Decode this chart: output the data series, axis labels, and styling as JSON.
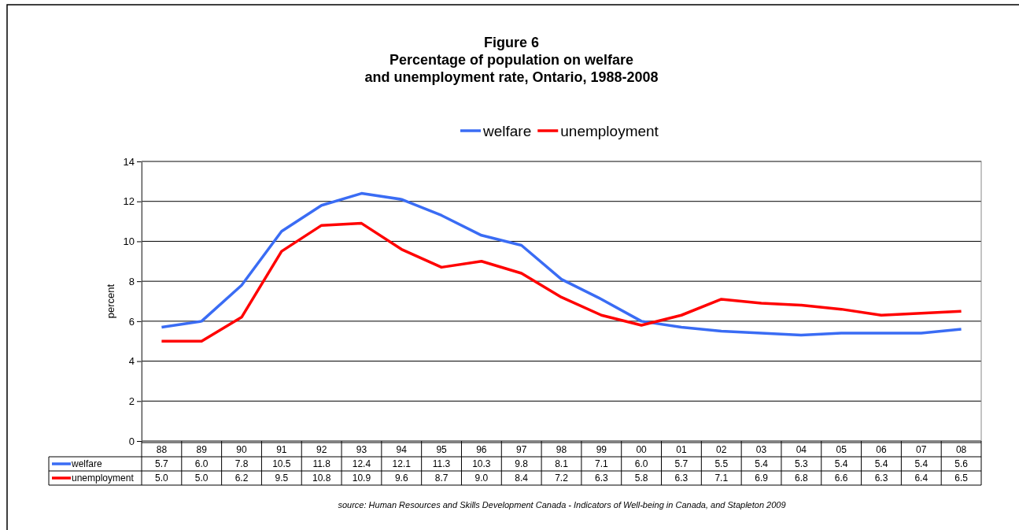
{
  "chart_data": {
    "type": "line",
    "title": "Figure 6",
    "subtitle": "Percentage of population on welfare\nand unemployment rate, Ontario, 1988-2008",
    "ylabel": "percent",
    "categories": [
      "88",
      "89",
      "90",
      "91",
      "92",
      "93",
      "94",
      "95",
      "96",
      "97",
      "98",
      "99",
      "00",
      "01",
      "02",
      "03",
      "04",
      "05",
      "06",
      "07",
      "08"
    ],
    "series": [
      {
        "name": "welfare",
        "color": "#3a6cf4",
        "values": [
          5.7,
          6.0,
          7.8,
          10.5,
          11.8,
          12.4,
          12.1,
          11.3,
          10.3,
          9.8,
          8.1,
          7.1,
          6.0,
          5.7,
          5.5,
          5.4,
          5.3,
          5.4,
          5.4,
          5.4,
          5.6
        ],
        "value_labels": [
          "5.7",
          "6.0",
          "7.8",
          "10.5",
          "11.8",
          "12.4",
          "12.1",
          "11.3",
          "10.3",
          "9.8",
          "8.1",
          "7.1",
          "6.0",
          "5.7",
          "5.5",
          "5.4",
          "5.3",
          "5.4",
          "5.4",
          "5.4",
          "5.6"
        ]
      },
      {
        "name": "unemployment",
        "color": "#ff0000",
        "values": [
          5.0,
          5.0,
          6.2,
          9.5,
          10.8,
          10.9,
          9.6,
          8.7,
          9.0,
          8.4,
          7.2,
          6.3,
          5.8,
          6.3,
          7.1,
          6.9,
          6.8,
          6.6,
          6.3,
          6.4,
          6.5
        ],
        "value_labels": [
          "5.0",
          "5.0",
          "6.2",
          "9.5",
          "10.8",
          "10.9",
          "9.6",
          "8.7",
          "9.0",
          "8.4",
          "7.2",
          "6.3",
          "5.8",
          "6.3",
          "7.1",
          "6.9",
          "6.8",
          "6.6",
          "6.3",
          "6.4",
          "6.5"
        ]
      }
    ],
    "ylim": [
      0,
      14
    ],
    "yticks": [
      0,
      2,
      4,
      6,
      8,
      10,
      12,
      14
    ],
    "grid": "y",
    "legend": "top",
    "marker": "none",
    "line_style": "solid",
    "annotations": [
      "source: Human Resources and Skills Development Canada - Indicators of Well-being in Canada, and Stapleton 2009"
    ]
  }
}
